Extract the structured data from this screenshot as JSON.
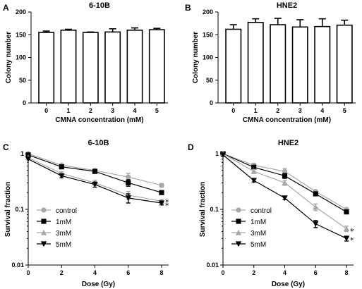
{
  "chart_data": [
    {
      "panel": "A",
      "type": "bar",
      "title": "6-10B",
      "xlabel": "CMNA concentration (mM)",
      "ylabel": "Colony number",
      "categories": [
        "0",
        "1",
        "2",
        "3",
        "4",
        "5"
      ],
      "values": [
        155,
        160,
        155,
        156,
        160,
        161
      ],
      "errors": [
        3,
        2,
        1,
        7,
        5,
        3
      ],
      "ylim": [
        0,
        200
      ],
      "yticks": [
        0,
        50,
        100,
        150,
        200
      ],
      "ytick_labels": [
        "0",
        "50",
        "100",
        "150",
        "200"
      ]
    },
    {
      "panel": "B",
      "type": "bar",
      "title": "HNE2",
      "xlabel": "CMNA concentration (mM)",
      "ylabel": "Colony number",
      "categories": [
        "0",
        "1",
        "2",
        "3",
        "4",
        "5"
      ],
      "values": [
        162,
        177,
        172,
        167,
        168,
        171
      ],
      "errors": [
        10,
        8,
        14,
        16,
        17,
        11
      ],
      "ylim": [
        0,
        200
      ],
      "yticks": [
        0,
        50,
        100,
        150,
        200
      ],
      "ytick_labels": [
        "0",
        "50",
        "100",
        "150",
        "200"
      ]
    },
    {
      "panel": "C",
      "type": "line",
      "title": "6-10B",
      "xlabel": "Dose (Gy)",
      "ylabel": "Survival fraction",
      "yscale": "log",
      "x": [
        0,
        2,
        4,
        6,
        8
      ],
      "xticks": [
        0,
        2,
        4,
        6,
        8
      ],
      "xtick_labels": [
        "0",
        "2",
        "4",
        "6",
        "8"
      ],
      "yticks": [
        1,
        0.1,
        0.01
      ],
      "ytick_labels": [
        "1",
        "0.1",
        "0.01"
      ],
      "ylim": [
        0.01,
        1
      ],
      "legend_position": "lower-left",
      "series": [
        {
          "name": "control",
          "marker": "circle",
          "color": "#a8a8a8",
          "values": [
            1,
            0.62,
            0.5,
            0.38,
            0.27
          ],
          "errors": [
            0,
            0.03,
            0.03,
            0.06,
            0.02
          ]
        },
        {
          "name": "1mM",
          "marker": "square",
          "color": "#000000",
          "values": [
            0.95,
            0.58,
            0.48,
            0.3,
            0.2
          ],
          "errors": [
            0,
            0.03,
            0.03,
            0.04,
            0.01
          ]
        },
        {
          "name": "3mM",
          "marker": "triangle-up",
          "color": "#a8a8a8",
          "values": [
            0.85,
            0.44,
            0.3,
            0.18,
            0.14
          ],
          "errors": [
            0,
            0.03,
            0.03,
            0.03,
            0.01
          ]
        },
        {
          "name": "5mM",
          "marker": "triangle-down",
          "color": "#000000",
          "values": [
            0.8,
            0.4,
            0.28,
            0.16,
            0.13
          ],
          "errors": [
            0,
            0.03,
            0.03,
            0.03,
            0.01
          ]
        }
      ],
      "annotations": [
        {
          "text": "*",
          "x": 8,
          "y": 0.14
        },
        {
          "text": "*",
          "x": 8,
          "y": 0.12
        }
      ]
    },
    {
      "panel": "D",
      "type": "line",
      "title": "HNE2",
      "xlabel": "Dose (Gy)",
      "ylabel": "Survival fraction",
      "yscale": "log",
      "x": [
        0,
        2,
        4,
        6,
        8
      ],
      "xticks": [
        0,
        2,
        4,
        6,
        8
      ],
      "xtick_labels": [
        "0",
        "2",
        "4",
        "6",
        "8"
      ],
      "yticks": [
        1,
        0.1,
        0.01
      ],
      "ytick_labels": [
        "1",
        "0.1",
        "0.01"
      ],
      "ylim": [
        0.01,
        1
      ],
      "legend_position": "lower-left",
      "series": [
        {
          "name": "control",
          "marker": "circle",
          "color": "#a8a8a8",
          "values": [
            1,
            0.62,
            0.48,
            0.21,
            0.1
          ],
          "errors": [
            0.05,
            0.05,
            0.06,
            0.01,
            0.005
          ]
        },
        {
          "name": "1mM",
          "marker": "square",
          "color": "#000000",
          "values": [
            1,
            0.57,
            0.4,
            0.19,
            0.09
          ],
          "errors": [
            0.05,
            0.04,
            0.04,
            0.01,
            0.005
          ]
        },
        {
          "name": "3mM",
          "marker": "triangle-up",
          "color": "#a8a8a8",
          "values": [
            1,
            0.48,
            0.3,
            0.11,
            0.045
          ],
          "errors": [
            0.05,
            0.04,
            0.03,
            0.015,
            0.005
          ]
        },
        {
          "name": "5mM",
          "marker": "triangle-down",
          "color": "#000000",
          "values": [
            0.95,
            0.33,
            0.16,
            0.055,
            0.03
          ],
          "errors": [
            0.05,
            0.02,
            0.01,
            0.008,
            0.003
          ]
        }
      ],
      "annotations": [
        {
          "text": "*",
          "x": 8,
          "y": 0.042
        },
        {
          "text": "*",
          "x": 8,
          "y": 0.029
        }
      ]
    }
  ]
}
